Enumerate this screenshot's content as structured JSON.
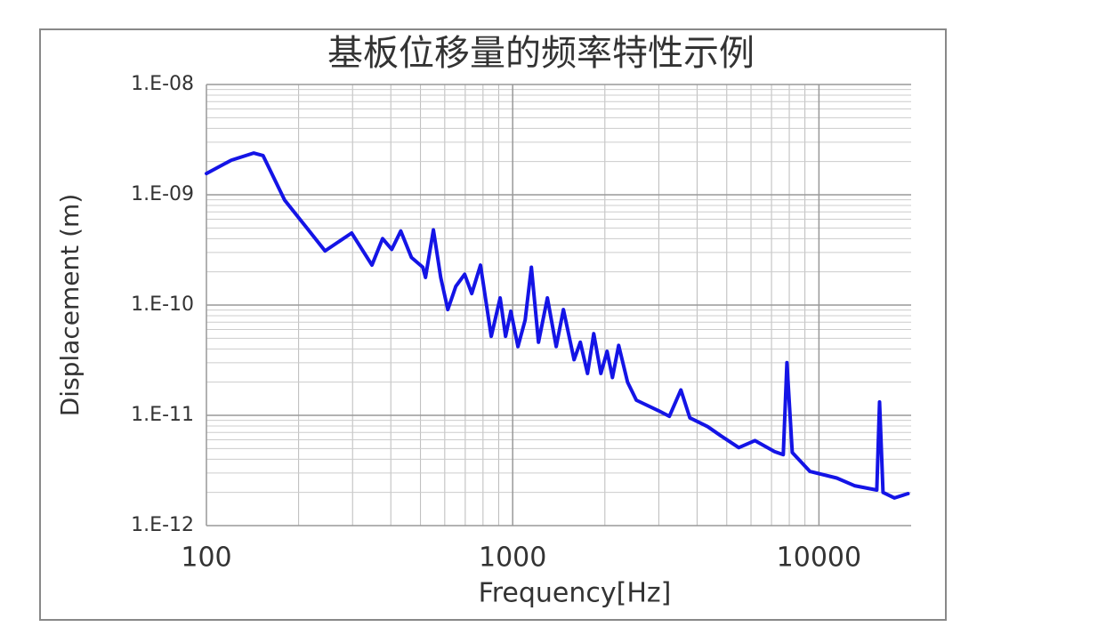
{
  "chart_data": {
    "type": "line",
    "title": "基板位移量的频率特性示例",
    "xlabel": "Frequency[Hz]",
    "ylabel": "Displacement (m)",
    "xscale": "log",
    "yscale": "log",
    "grid": true,
    "minor_grid": true,
    "color": "#1414e6",
    "xlim": [
      100,
      20000
    ],
    "ylim": [
      1e-12,
      1e-08
    ],
    "xticks": [
      100,
      1000,
      10000
    ],
    "yticks": [
      {
        "value": 1e-12,
        "label": "1.E-12"
      },
      {
        "value": 1e-11,
        "label": "1.E-11"
      },
      {
        "value": 1e-10,
        "label": "1.E-10"
      },
      {
        "value": 1e-09,
        "label": "1.E-09"
      },
      {
        "value": 1e-08,
        "label": "1.E-08"
      }
    ],
    "x": [
      100,
      120.6,
      142.6,
      153,
      180,
      206,
      244,
      298,
      347,
      376,
      403,
      431,
      467,
      509,
      519,
      551,
      582,
      614,
      652,
      697,
      735,
      785,
      851,
      910,
      948,
      986,
      1040,
      1098,
      1151,
      1214,
      1298,
      1387,
      1464,
      1587,
      1663,
      1755,
      1840,
      1941,
      2034,
      2117,
      2219,
      2372,
      2535,
      2997,
      3248,
      3542,
      3788,
      4330,
      4790,
      5475,
      6177,
      7156,
      7650,
      7860,
      8180,
      9350,
      11430,
      13060,
      15450,
      15770,
      16190,
      17650,
      19540
    ],
    "values": [
      1.56e-09,
      2.06e-09,
      2.39e-09,
      2.27e-09,
      8.95e-10,
      5.6e-10,
      3.1e-10,
      4.5e-10,
      2.3e-10,
      4e-10,
      3.2e-10,
      4.7e-10,
      2.7e-10,
      2.2e-10,
      1.78e-10,
      4.8e-10,
      1.78e-10,
      9.1e-11,
      1.48e-10,
      1.9e-10,
      1.27e-10,
      2.3e-10,
      5.2e-11,
      1.16e-10,
      5.2e-11,
      8.8e-11,
      4.2e-11,
      7.3e-11,
      2.2e-10,
      4.6e-11,
      1.16e-10,
      4.2e-11,
      9.1e-11,
      3.2e-11,
      4.6e-11,
      2.4e-11,
      5.5e-11,
      2.4e-11,
      3.8e-11,
      2.2e-11,
      4.3e-11,
      2e-11,
      1.37e-11,
      1.1e-11,
      9.8e-12,
      1.7e-11,
      9.5e-12,
      7.9e-12,
      6.5e-12,
      5.1e-12,
      5.9e-12,
      4.7e-12,
      4.4e-12,
      3e-11,
      4.6e-12,
      3.1e-12,
      2.7e-12,
      2.3e-12,
      2.1e-12,
      1.32e-11,
      2e-12,
      1.78e-12,
      1.95e-12
    ]
  }
}
